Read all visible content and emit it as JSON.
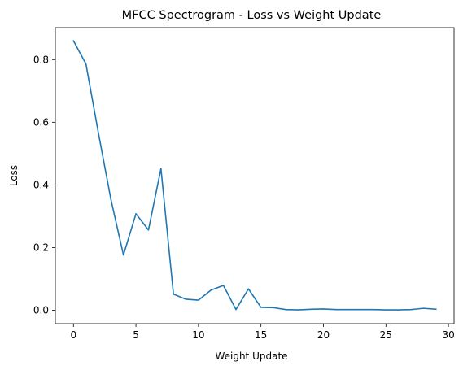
{
  "chart_data": {
    "type": "line",
    "title": "MFCC Spectrogram - Loss vs Weight Update",
    "xlabel": "Weight Update",
    "ylabel": "Loss",
    "xlim": [
      -1.45,
      30.45
    ],
    "ylim": [
      -0.043,
      0.902
    ],
    "xticks": [
      0,
      5,
      10,
      15,
      20,
      25,
      30
    ],
    "xtick_labels": [
      "0",
      "5",
      "10",
      "15",
      "20",
      "25",
      "30"
    ],
    "yticks": [
      0.0,
      0.2,
      0.4,
      0.6,
      0.8
    ],
    "ytick_labels": [
      "0.0",
      "0.2",
      "0.4",
      "0.6",
      "0.8"
    ],
    "grid": false,
    "legend": "none",
    "series": [
      {
        "color": "#1f77b4",
        "x": [
          0,
          1,
          2,
          3,
          4,
          5,
          6,
          7,
          8,
          9,
          10,
          11,
          12,
          13,
          14,
          15,
          16,
          17,
          18,
          19,
          20,
          21,
          22,
          23,
          24,
          25,
          26,
          27,
          28,
          29
        ],
        "values": [
          0.86,
          0.786,
          0.565,
          0.353,
          0.176,
          0.308,
          0.256,
          0.452,
          0.051,
          0.035,
          0.032,
          0.064,
          0.079,
          0.002,
          0.068,
          0.009,
          0.008,
          0.002,
          0.001,
          0.003,
          0.004,
          0.002,
          0.002,
          0.002,
          0.002,
          0.001,
          0.001,
          0.002,
          0.006,
          0.003
        ]
      }
    ]
  }
}
